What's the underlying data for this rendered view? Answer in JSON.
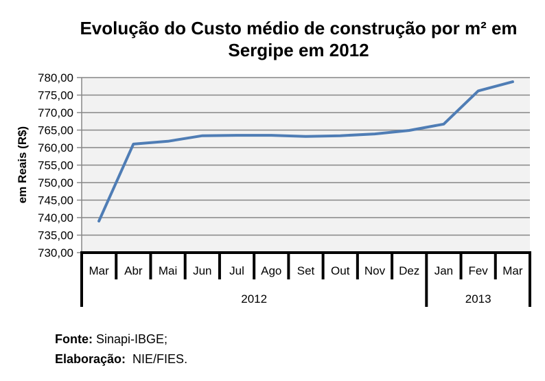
{
  "chart_data": {
    "type": "line",
    "title_lines": [
      "Evolução do Custo médio de construção por m² em",
      "Sergipe em 2012"
    ],
    "xlabel": "",
    "ylabel": "em Reais (R$)",
    "categories": [
      "Mar",
      "Abr",
      "Mai",
      "Jun",
      "Jul",
      "Ago",
      "Set",
      "Out",
      "Nov",
      "Dez",
      "Jan",
      "Fev",
      "Mar"
    ],
    "groups": [
      {
        "label": "2012",
        "count": 10
      },
      {
        "label": "2013",
        "count": 3
      }
    ],
    "series": [
      {
        "name": "Custo médio",
        "color": "#4F7DB5",
        "values": [
          739.0,
          761.0,
          761.8,
          763.4,
          763.5,
          763.5,
          763.2,
          763.4,
          763.9,
          764.9,
          766.7,
          776.2,
          778.8
        ]
      }
    ],
    "ylim": [
      730,
      780
    ],
    "yticks": [
      730,
      735,
      740,
      745,
      750,
      755,
      760,
      765,
      770,
      775,
      780
    ],
    "ytick_labels": [
      "730,00",
      "735,00",
      "740,00",
      "745,00",
      "750,00",
      "755,00",
      "760,00",
      "765,00",
      "770,00",
      "775,00",
      "780,00"
    ],
    "grid": true,
    "plot_bg": "#F2F2F2",
    "legend": "none"
  },
  "footer": {
    "fonte_label": "Fonte:",
    "fonte_value": " Sinapi-IBGE;",
    "elaboracao_label": "Elaboração:",
    "elaboracao_value": "  NIE/FIES."
  }
}
